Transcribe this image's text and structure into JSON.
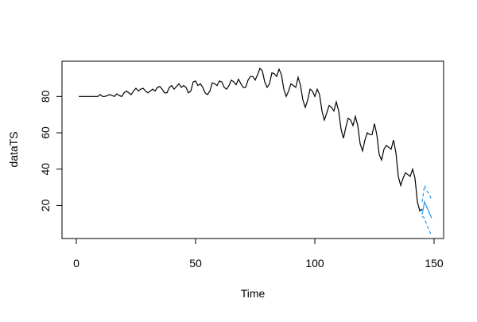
{
  "chart_data": {
    "type": "line",
    "xlabel": "Time",
    "ylabel": "dataTS",
    "xlim": [
      -6,
      154
    ],
    "ylim": [
      1.8,
      99.4
    ],
    "xticks": [
      0,
      50,
      100,
      150
    ],
    "yticks": [
      20,
      40,
      60,
      80
    ],
    "series": [
      {
        "color": "#000000",
        "dash": "solid",
        "x": [
          1,
          2,
          3,
          4,
          5,
          6,
          7,
          8,
          9,
          10,
          11,
          12,
          13,
          14,
          15,
          16,
          17,
          18,
          19,
          20,
          21,
          22,
          23,
          24,
          25,
          26,
          27,
          28,
          29,
          30,
          31,
          32,
          33,
          34,
          35,
          36,
          37,
          38,
          39,
          40,
          41,
          42,
          43,
          44,
          45,
          46,
          47,
          48,
          49,
          50,
          51,
          52,
          53,
          54,
          55,
          56,
          57,
          58,
          59,
          60,
          61,
          62,
          63,
          64,
          65,
          66,
          67,
          68,
          69,
          70,
          71,
          72,
          73,
          74,
          75,
          76,
          77,
          78,
          79,
          80,
          81,
          82,
          83,
          84,
          85,
          86,
          87,
          88,
          89,
          90,
          91,
          92,
          93,
          94,
          95,
          96,
          97,
          98,
          99,
          100,
          101,
          102,
          103,
          104,
          105,
          106,
          107,
          108,
          109,
          110,
          111,
          112,
          113,
          114,
          115,
          116,
          117,
          118,
          119,
          120,
          121,
          122,
          123,
          124,
          125,
          126,
          127,
          128,
          129,
          130,
          131,
          132,
          133,
          134,
          135,
          136,
          137,
          138,
          139,
          140,
          141,
          142,
          143,
          144,
          145
        ],
        "values": [
          80,
          80,
          80,
          80,
          80,
          80,
          80,
          80,
          80,
          81,
          80,
          80,
          80.5,
          81,
          80.5,
          80,
          81.5,
          80.5,
          80,
          82,
          83,
          82,
          81,
          83,
          84.5,
          83,
          84,
          84.5,
          83,
          82,
          83,
          84,
          83,
          85,
          85.5,
          84,
          82,
          82,
          85,
          86,
          84,
          85.5,
          87,
          85,
          86,
          85,
          82,
          83,
          88,
          88.5,
          86,
          87,
          85,
          82,
          81,
          83,
          87.5,
          87,
          86,
          88.5,
          88,
          85,
          84,
          86,
          89,
          88,
          86.5,
          89.5,
          87,
          85,
          85,
          89,
          91,
          91,
          89,
          92,
          95.5,
          94,
          88,
          85,
          87,
          93,
          92.5,
          91,
          95,
          92,
          84,
          80,
          83,
          87,
          86,
          85,
          90.5,
          86,
          78,
          74,
          78,
          84,
          83,
          80,
          84,
          81,
          72,
          67,
          71,
          75,
          74,
          72,
          77,
          72,
          62,
          57,
          63,
          68,
          67,
          64,
          69,
          64,
          54,
          50,
          56,
          60,
          59,
          59,
          65,
          59,
          48,
          45,
          51,
          53,
          52,
          51,
          56,
          49,
          36,
          31,
          35,
          38,
          37,
          36,
          40,
          35,
          22,
          17,
          18
        ]
      },
      {
        "color": "#2196f3",
        "dash": "solid",
        "x": [
          145,
          146,
          147,
          148,
          149
        ],
        "values": [
          15,
          22,
          19,
          16,
          13
        ]
      },
      {
        "color": "#2196f3",
        "dash": "dashed",
        "x": [
          145,
          146,
          147,
          148,
          149
        ],
        "values": [
          22,
          31,
          28,
          26,
          23
        ]
      },
      {
        "color": "#2196f3",
        "dash": "dashed",
        "x": [
          145,
          146,
          147,
          148,
          149
        ],
        "values": [
          14,
          13,
          9,
          6,
          3.5
        ]
      }
    ]
  }
}
